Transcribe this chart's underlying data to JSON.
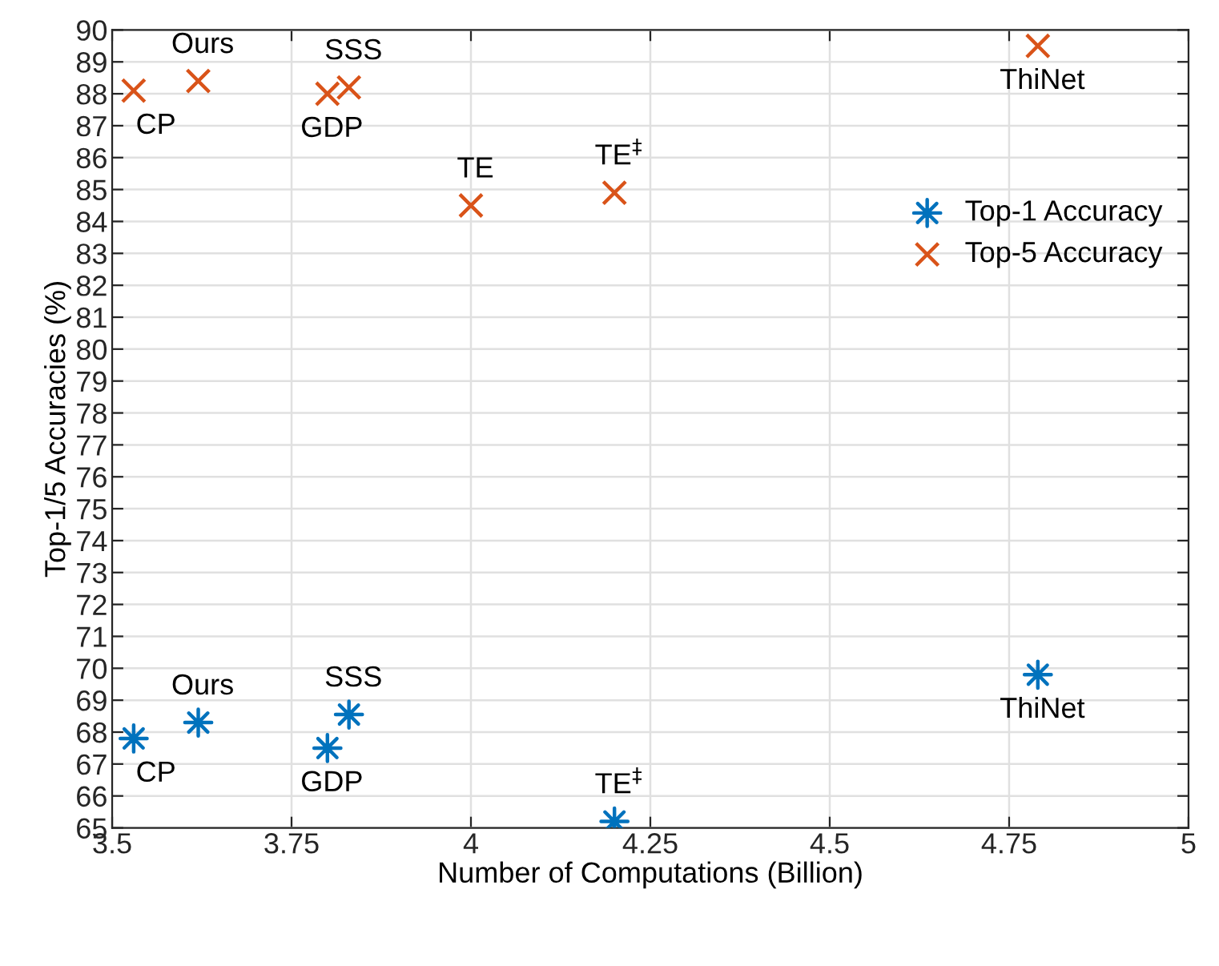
{
  "chart_data": {
    "type": "scatter",
    "xlabel": "Number of Computations (Billion)",
    "ylabel": "Top-1/5 Accuracies (%)",
    "xlim": [
      3.5,
      5
    ],
    "xticks": [
      3.5,
      3.75,
      4,
      4.25,
      4.5,
      4.75,
      5
    ],
    "ylim": [
      65,
      90
    ],
    "yticks": [
      65,
      66,
      67,
      68,
      69,
      70,
      71,
      72,
      73,
      74,
      75,
      76,
      77,
      78,
      79,
      80,
      81,
      82,
      83,
      84,
      85,
      86,
      87,
      88,
      89,
      90
    ],
    "grid": true,
    "legend": "top right",
    "series": [
      {
        "name": "Top-1 Accuracy",
        "color": "#0072bd",
        "marker": "star",
        "x": [
          3.53,
          3.62,
          3.8,
          3.83,
          4.2,
          4.79
        ],
        "values": [
          67.8,
          68.3,
          67.5,
          68.55,
          65.2,
          69.8
        ]
      },
      {
        "name": "Top-5 Accuracy",
        "color": "#d95319",
        "marker": "cross",
        "x": [
          3.53,
          3.62,
          3.8,
          3.83,
          4.0,
          4.2,
          4.79
        ],
        "values": [
          88.1,
          88.4,
          88.0,
          88.2,
          84.5,
          84.9,
          89.5
        ]
      }
    ],
    "annotations": [
      {
        "text": "CP",
        "x": 3.53,
        "y": 88.1
      },
      {
        "text": "Ours",
        "x": 3.62,
        "y": 88.4
      },
      {
        "text": "SSS",
        "x": 3.83,
        "y": 88.2
      },
      {
        "text": "GDP",
        "x": 3.8,
        "y": 88.0
      },
      {
        "text": "TE",
        "x": 4.0,
        "y": 84.5
      },
      {
        "text": "TE$^{‡}$",
        "x": 4.2,
        "y": 84.9
      },
      {
        "text": "ThiNet",
        "x": 4.79,
        "y": 89.5
      },
      {
        "text": "CP",
        "x": 3.53,
        "y": 67.8
      },
      {
        "text": "Ours",
        "x": 3.62,
        "y": 68.3
      },
      {
        "text": "SSS",
        "x": 3.83,
        "y": 68.55
      },
      {
        "text": "GDP",
        "x": 3.8,
        "y": 67.5
      },
      {
        "text": "TE$^{‡}$",
        "x": 4.2,
        "y": 65.2
      },
      {
        "text": "ThiNet",
        "x": 4.79,
        "y": 69.8
      }
    ]
  }
}
